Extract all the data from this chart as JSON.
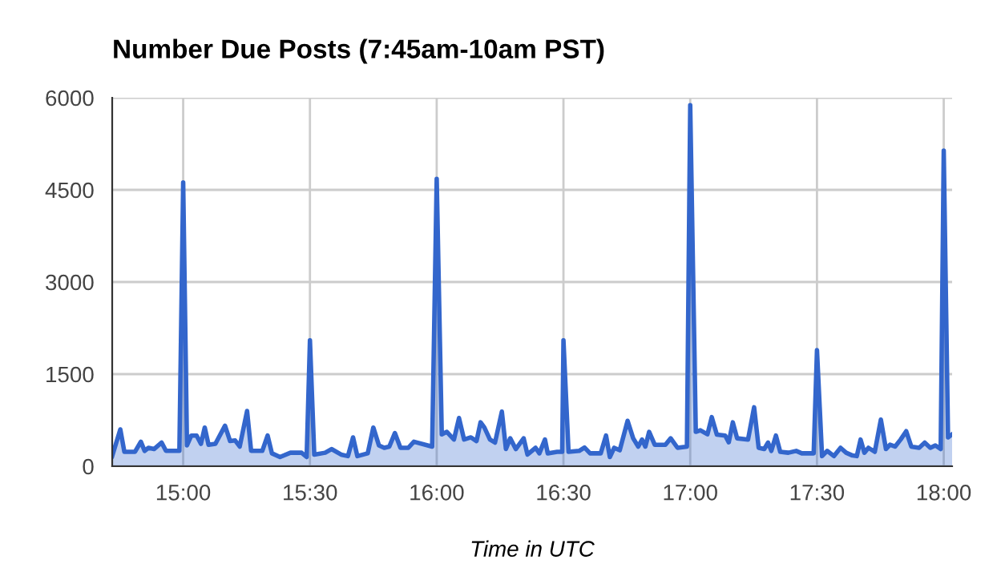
{
  "chart_data": {
    "type": "area",
    "title": "Number Due Posts (7:45am-10am PST)",
    "xlabel": "Time in UTC",
    "x": [
      14.72,
      14.752,
      14.768,
      14.81,
      14.833,
      14.848,
      14.863,
      14.885,
      14.915,
      14.932,
      14.985,
      15.0,
      15.015,
      15.032,
      15.053,
      15.07,
      15.085,
      15.1,
      15.127,
      15.165,
      15.185,
      15.205,
      15.223,
      15.252,
      15.268,
      15.312,
      15.333,
      15.35,
      15.382,
      15.423,
      15.467,
      15.487,
      15.5,
      15.517,
      15.56,
      15.585,
      15.623,
      15.65,
      15.67,
      15.687,
      15.728,
      15.75,
      15.772,
      15.793,
      15.813,
      15.835,
      15.857,
      15.888,
      15.91,
      15.982,
      16.0,
      16.02,
      16.04,
      16.068,
      16.088,
      16.108,
      16.135,
      16.157,
      16.173,
      16.188,
      16.21,
      16.23,
      16.257,
      16.273,
      16.29,
      16.312,
      16.343,
      16.358,
      16.39,
      16.405,
      16.427,
      16.438,
      16.475,
      16.495,
      16.5,
      16.52,
      16.562,
      16.583,
      16.605,
      16.647,
      16.668,
      16.683,
      16.7,
      16.722,
      16.753,
      16.775,
      16.795,
      16.81,
      16.823,
      16.838,
      16.86,
      16.902,
      16.923,
      16.95,
      16.987,
      17.0,
      17.022,
      17.04,
      17.068,
      17.085,
      17.105,
      17.138,
      17.152,
      17.168,
      17.185,
      17.228,
      17.252,
      17.27,
      17.292,
      17.307,
      17.32,
      17.338,
      17.355,
      17.387,
      17.418,
      17.44,
      17.487,
      17.5,
      17.52,
      17.54,
      17.567,
      17.593,
      17.615,
      17.64,
      17.657,
      17.672,
      17.687,
      17.703,
      17.728,
      17.752,
      17.772,
      17.788,
      17.808,
      17.83,
      17.852,
      17.872,
      17.903,
      17.925,
      17.947,
      17.967,
      17.988,
      18.0,
      18.017,
      18.033
    ],
    "series": [
      {
        "color": "#3366cc",
        "values": [
          165,
          600,
          235,
          235,
          400,
          250,
          300,
          280,
          385,
          250,
          250,
          4620,
          340,
          500,
          500,
          365,
          630,
          350,
          365,
          660,
          410,
          420,
          320,
          900,
          250,
          250,
          500,
          210,
          150,
          220,
          220,
          150,
          2050,
          190,
          220,
          280,
          190,
          165,
          470,
          165,
          210,
          630,
          340,
          300,
          320,
          540,
          300,
          300,
          400,
          320,
          4680,
          520,
          560,
          435,
          785,
          435,
          470,
          410,
          715,
          630,
          435,
          385,
          890,
          280,
          455,
          280,
          455,
          190,
          300,
          210,
          435,
          210,
          235,
          235,
          2050,
          235,
          250,
          305,
          210,
          210,
          500,
          150,
          300,
          260,
          740,
          455,
          320,
          435,
          320,
          560,
          350,
          350,
          455,
          300,
          320,
          5880,
          560,
          585,
          520,
          800,
          515,
          500,
          390,
          715,
          455,
          435,
          960,
          300,
          280,
          385,
          250,
          500,
          235,
          220,
          250,
          210,
          210,
          1890,
          165,
          250,
          165,
          300,
          220,
          175,
          165,
          435,
          220,
          300,
          235,
          760,
          280,
          350,
          320,
          435,
          570,
          320,
          300,
          385,
          300,
          340,
          280,
          5140,
          470,
          520
        ]
      }
    ],
    "xlim": [
      14.72,
      18.033
    ],
    "xticks": [
      {
        "value": 15,
        "label": "15:00"
      },
      {
        "value": 15.5,
        "label": "15:30"
      },
      {
        "value": 16,
        "label": "16:00"
      },
      {
        "value": 16.5,
        "label": "16:30"
      },
      {
        "value": 17,
        "label": "17:00"
      },
      {
        "value": 17.5,
        "label": "17:30"
      },
      {
        "value": 18,
        "label": "18:00"
      }
    ],
    "ylim": [
      0,
      6000
    ],
    "yticks": [
      0,
      1500,
      3000,
      4500,
      6000
    ],
    "grid": true
  }
}
